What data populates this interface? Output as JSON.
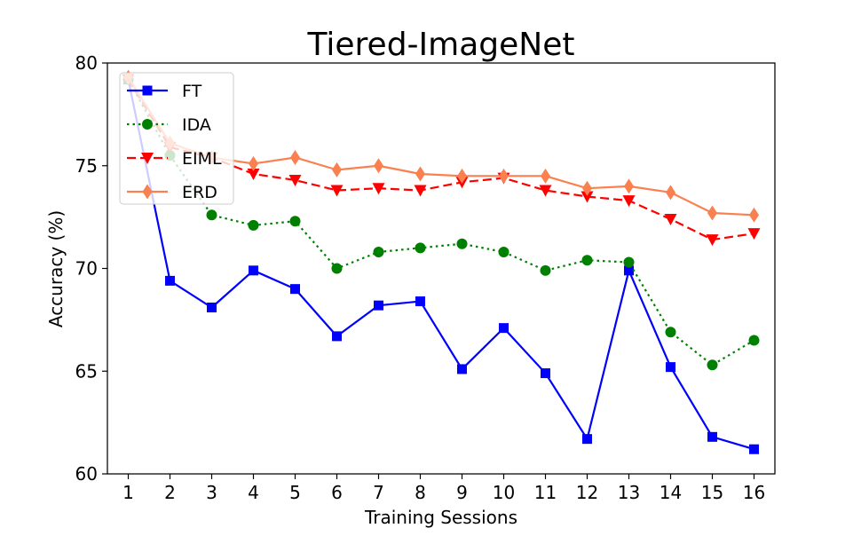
{
  "chart_data": {
    "type": "line",
    "title": "Tiered-ImageNet",
    "xlabel": "Training Sessions",
    "ylabel": "Accuracy (%)",
    "x": [
      1,
      2,
      3,
      4,
      5,
      6,
      7,
      8,
      9,
      10,
      11,
      12,
      13,
      14,
      15,
      16
    ],
    "xlim": [
      0.5,
      16.5
    ],
    "ylim": [
      60,
      80
    ],
    "yticks": [
      60,
      65,
      70,
      75,
      80
    ],
    "grid": false,
    "legend_position": "top-left",
    "series": [
      {
        "name": "FT",
        "color": "#0000ff",
        "line_style": "solid",
        "marker": "square",
        "values": [
          79.2,
          69.4,
          68.1,
          69.9,
          69.0,
          66.7,
          68.2,
          68.4,
          65.1,
          67.1,
          64.9,
          61.7,
          69.9,
          65.2,
          61.8,
          61.2
        ]
      },
      {
        "name": "IDA",
        "color": "#008000",
        "line_style": "dotted",
        "marker": "circle",
        "values": [
          79.2,
          75.5,
          72.6,
          72.1,
          72.3,
          70.0,
          70.8,
          71.0,
          71.2,
          70.8,
          69.9,
          70.4,
          70.3,
          66.9,
          65.3,
          66.5
        ]
      },
      {
        "name": "EIML",
        "color": "#ff0000",
        "line_style": "dashed",
        "marker": "triangle-down",
        "values": [
          79.2,
          75.9,
          75.4,
          74.6,
          74.3,
          73.8,
          73.9,
          73.8,
          74.2,
          74.4,
          73.8,
          73.5,
          73.3,
          72.4,
          71.4,
          71.7
        ]
      },
      {
        "name": "ERD",
        "color": "#fa8050",
        "line_style": "solid",
        "marker": "diamond",
        "values": [
          79.3,
          76.1,
          75.4,
          75.1,
          75.4,
          74.8,
          75.0,
          74.6,
          74.5,
          74.5,
          74.5,
          73.9,
          74.0,
          73.7,
          72.7,
          72.6
        ]
      }
    ]
  }
}
